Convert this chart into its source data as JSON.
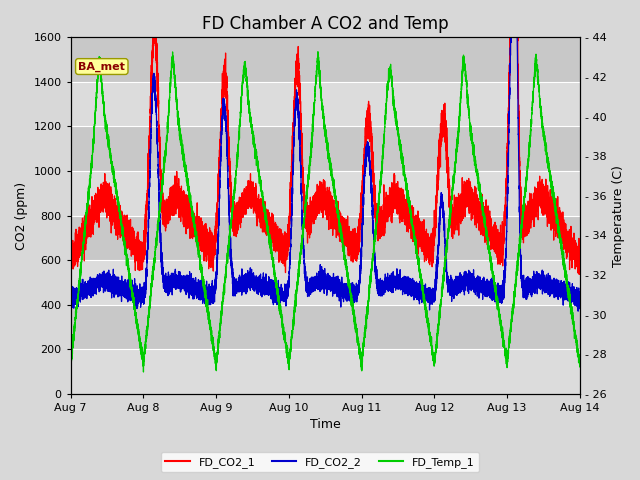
{
  "title": "FD Chamber A CO2 and Temp",
  "xlabel": "Time",
  "ylabel_left": "CO2 (ppm)",
  "ylabel_right": "Temperature (C)",
  "annotation_text": "BA_met",
  "annotation_color": "#8B0000",
  "annotation_bg": "#FFFF99",
  "annotation_border": "#999900",
  "xlim_days": [
    0,
    7
  ],
  "ylim_left": [
    0,
    1600
  ],
  "ylim_right": [
    26,
    44
  ],
  "yticks_left": [
    0,
    200,
    400,
    600,
    800,
    1000,
    1200,
    1400,
    1600
  ],
  "yticks_right": [
    26,
    28,
    30,
    32,
    34,
    36,
    38,
    40,
    42,
    44
  ],
  "xtick_labels": [
    "Aug 7",
    "Aug 8",
    "Aug 9",
    "Aug 10",
    "Aug 11",
    "Aug 12",
    "Aug 13",
    "Aug 14"
  ],
  "xtick_positions": [
    0,
    1,
    2,
    3,
    4,
    5,
    6,
    7
  ],
  "bg_color": "#D8D8D8",
  "band_light": "#DCDCDC",
  "band_dark": "#C8C8C8",
  "grid_color": "white",
  "line_co2_1_color": "#FF0000",
  "line_co2_2_color": "#0000CD",
  "line_temp_color": "#00CC00",
  "legend_labels": [
    "FD_CO2_1",
    "FD_CO2_2",
    "FD_Temp_1"
  ],
  "legend_colors": [
    "#FF0000",
    "#0000CD",
    "#00CC00"
  ],
  "title_fontsize": 12,
  "axis_fontsize": 9,
  "tick_fontsize": 8,
  "linewidth": 0.9
}
